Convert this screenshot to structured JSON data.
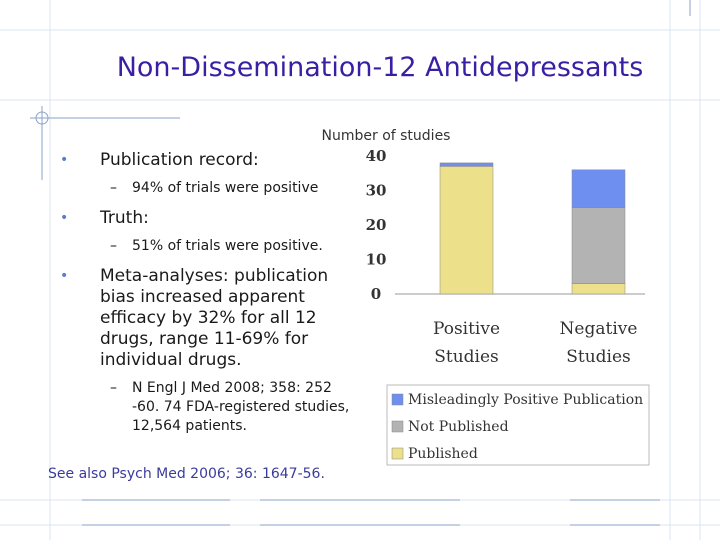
{
  "slide": {
    "title": "Non-Dissemination-12 Antidepressants",
    "bullets": [
      {
        "text": "Publication record:",
        "sub": [
          "94% of trials were positive"
        ]
      },
      {
        "text": "Truth:",
        "sub": [
          "51% of trials were positive."
        ]
      },
      {
        "text": "Meta-analyses: publication bias increased apparent efficacy by 32% for all 12 drugs, range 11-69% for individual drugs.",
        "sub": [
          "N Engl J Med 2008; 358: 252 -60. 74 FDA-registered studies, 12,564 patients."
        ]
      }
    ],
    "see_also": "See also Psych Med 2006; 36: 1647-56."
  },
  "chart_data": {
    "type": "bar",
    "stacked": true,
    "title": "Number of studies",
    "categories": [
      "Positive Studies",
      "Negative Studies"
    ],
    "series": [
      {
        "name": "Published",
        "values": [
          37,
          3
        ],
        "color": "#ece08a"
      },
      {
        "name": "Not Published",
        "values": [
          0,
          22
        ],
        "color": "#b3b3b3"
      },
      {
        "name": "Misleadingly Positive Publication",
        "values": [
          1,
          11
        ],
        "color": "#6f8ff0"
      }
    ],
    "y_ticks": [
      "40",
      "30",
      "20",
      "10",
      "0"
    ],
    "ylim": [
      0,
      40
    ],
    "legend_order": [
      "Misleadingly Positive Publication",
      "Not Published",
      "Published"
    ],
    "legend_placement": "bottom",
    "grid": false
  }
}
